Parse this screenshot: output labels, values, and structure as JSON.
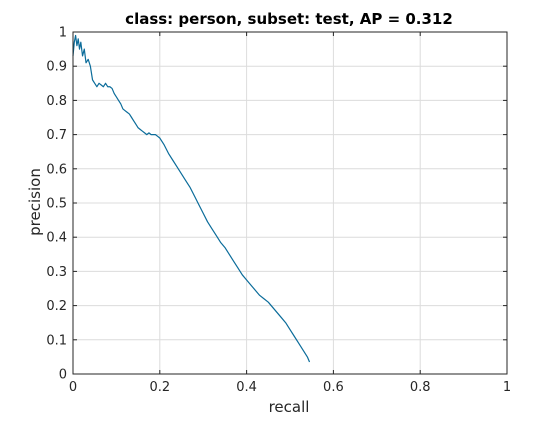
{
  "chart_data": {
    "type": "line",
    "title": "class: person, subset: test, AP = 0.312",
    "xlabel": "recall",
    "ylabel": "precision",
    "xlim": [
      0,
      1
    ],
    "ylim": [
      0,
      1
    ],
    "grid": true,
    "box": true,
    "xticks": [
      0,
      0.2,
      0.4,
      0.6,
      0.8,
      1
    ],
    "xtick_labels": [
      "0",
      "0.2",
      "0.4",
      "0.6",
      "0.8",
      "1"
    ],
    "yticks": [
      0,
      0.1,
      0.2,
      0.3,
      0.4,
      0.5,
      0.6,
      0.7,
      0.8,
      0.9,
      1
    ],
    "ytick_labels": [
      "0",
      "0.1",
      "0.2",
      "0.3",
      "0.4",
      "0.5",
      "0.6",
      "0.7",
      "0.8",
      "0.9",
      "1"
    ],
    "colors": {
      "line": "#0b6c9a",
      "axis": "#262626",
      "grid": "#dcdcdc",
      "background": "#ffffff"
    },
    "series": [
      {
        "x": [
          0.0,
          0.003,
          0.006,
          0.009,
          0.012,
          0.015,
          0.018,
          0.022,
          0.026,
          0.03,
          0.035,
          0.04,
          0.045,
          0.05,
          0.055,
          0.06,
          0.065,
          0.07,
          0.075,
          0.08,
          0.085,
          0.09,
          0.095,
          0.1,
          0.105,
          0.11,
          0.115,
          0.12,
          0.125,
          0.13,
          0.135,
          0.14,
          0.145,
          0.15,
          0.155,
          0.16,
          0.165,
          0.17,
          0.175,
          0.18,
          0.185,
          0.19,
          0.195,
          0.2,
          0.205,
          0.21,
          0.22,
          0.23,
          0.24,
          0.25,
          0.26,
          0.27,
          0.28,
          0.29,
          0.3,
          0.31,
          0.32,
          0.33,
          0.34,
          0.35,
          0.36,
          0.37,
          0.38,
          0.39,
          0.4,
          0.41,
          0.42,
          0.43,
          0.44,
          0.45,
          0.46,
          0.47,
          0.48,
          0.49,
          0.5,
          0.51,
          0.52,
          0.53,
          0.54,
          0.545
        ],
        "y": [
          0.93,
          0.97,
          0.99,
          0.96,
          0.98,
          0.95,
          0.97,
          0.93,
          0.95,
          0.91,
          0.92,
          0.9,
          0.86,
          0.85,
          0.84,
          0.85,
          0.845,
          0.84,
          0.85,
          0.84,
          0.84,
          0.835,
          0.82,
          0.81,
          0.8,
          0.79,
          0.775,
          0.77,
          0.765,
          0.76,
          0.75,
          0.74,
          0.73,
          0.72,
          0.715,
          0.71,
          0.705,
          0.7,
          0.705,
          0.7,
          0.7,
          0.7,
          0.695,
          0.69,
          0.68,
          0.67,
          0.645,
          0.625,
          0.605,
          0.585,
          0.565,
          0.545,
          0.52,
          0.495,
          0.47,
          0.445,
          0.425,
          0.405,
          0.385,
          0.37,
          0.35,
          0.33,
          0.31,
          0.29,
          0.275,
          0.26,
          0.245,
          0.23,
          0.22,
          0.21,
          0.195,
          0.18,
          0.165,
          0.15,
          0.13,
          0.11,
          0.09,
          0.07,
          0.05,
          0.035
        ]
      }
    ]
  }
}
